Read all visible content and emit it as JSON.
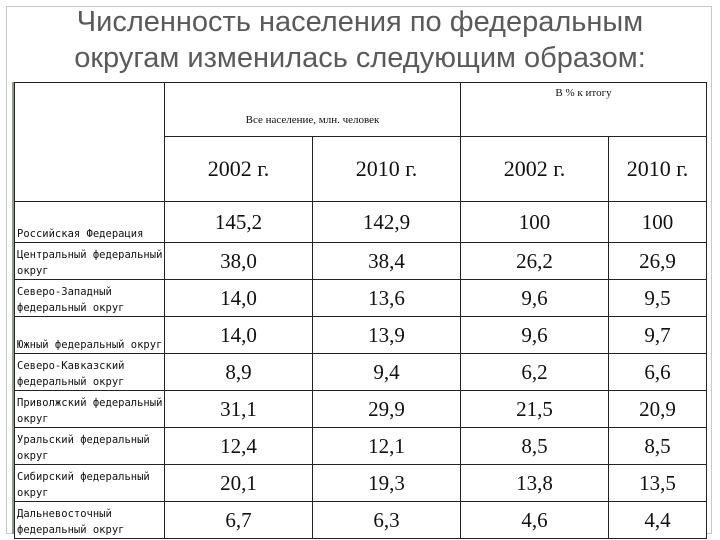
{
  "title_line1": "Численность населения по федеральным",
  "title_line2": "округам изменилась следующим образом:",
  "header": {
    "group_abs": "Все население, млн. человек",
    "group_pct": "В % к итогу",
    "years": [
      "2002 г.",
      "2010 г.",
      "2002 г.",
      "2010 г."
    ]
  },
  "rows": [
    {
      "name": "Российская Федерация",
      "v2002": "145,2",
      "v2010": "142,9",
      "p2002": "100",
      "p2010": "100"
    },
    {
      "name": "Центральный федеральный округ",
      "v2002": "38,0",
      "v2010": "38,4",
      "p2002": "26,2",
      "p2010": "26,9"
    },
    {
      "name": "Северо-Западный федеральный округ",
      "v2002": "14,0",
      "v2010": "13,6",
      "p2002": "9,6",
      "p2010": "9,5"
    },
    {
      "name": "Южный федеральный округ",
      "v2002": "14,0",
      "v2010": "13,9",
      "p2002": "9,6",
      "p2010": "9,7"
    },
    {
      "name": "Северо-Кавказский федеральный округ",
      "v2002": "8,9",
      "v2010": "9,4",
      "p2002": "6,2",
      "p2010": "6,6"
    },
    {
      "name": "Приволжский федеральный округ",
      "v2002": "31,1",
      "v2010": "29,9",
      "p2002": "21,5",
      "p2010": "20,9"
    },
    {
      "name": "Уральский федеральный округ",
      "v2002": "12,4",
      "v2010": "12,1",
      "p2002": "8,5",
      "p2010": "8,5"
    },
    {
      "name": "Сибирский федеральный округ",
      "v2002": "20,1",
      "v2010": "19,3",
      "p2002": "13,8",
      "p2010": "13,5"
    },
    {
      "name": "Дальневосточный федеральный округ",
      "v2002": "6,7",
      "v2010": "6,3",
      "p2002": "4,6",
      "p2010": "4,4"
    }
  ]
}
